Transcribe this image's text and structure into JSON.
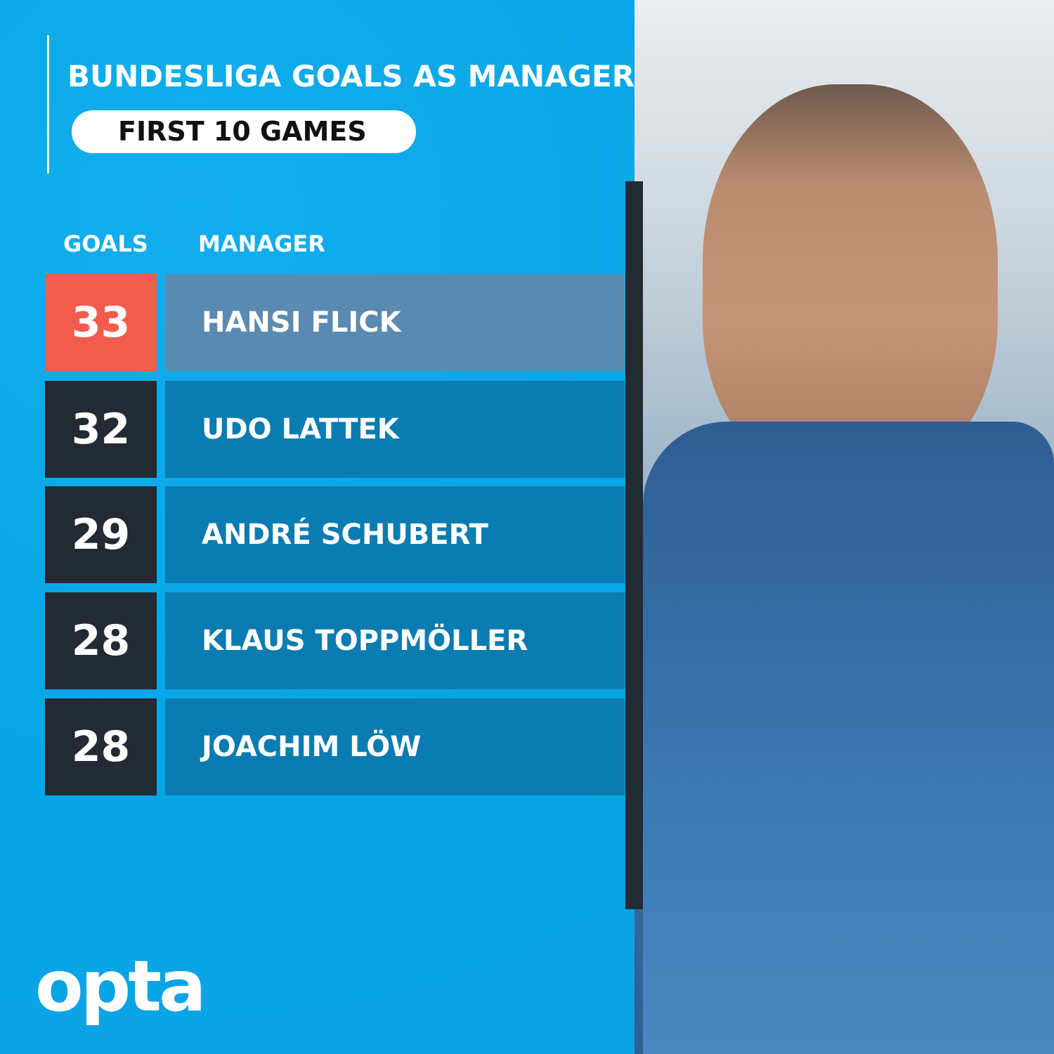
{
  "title": "BUNDESLIGA GOALS AS MANAGER",
  "subtitle": "FIRST 10 GAMES",
  "brand": "opta",
  "colors": {
    "background": "#0aa9e9",
    "highlight_goals": "#f25c4c",
    "highlight_row": "#5b8ab1",
    "row": "#0b7cb1",
    "goals_cell": "#222a33"
  },
  "chart_data": {
    "type": "table",
    "title": "BUNDESLIGA GOALS AS MANAGER",
    "subtitle": "FIRST 10 GAMES",
    "columns": [
      "GOALS",
      "MANAGER"
    ],
    "rows": [
      {
        "goals": "33",
        "manager": "HANSI FLICK",
        "highlighted": true
      },
      {
        "goals": "32",
        "manager": "UDO LATTEK",
        "highlighted": false
      },
      {
        "goals": "29",
        "manager": "ANDRÉ SCHUBERT",
        "highlighted": false
      },
      {
        "goals": "28",
        "manager": "KLAUS TOPPMÖLLER",
        "highlighted": false
      },
      {
        "goals": "28",
        "manager": "JOACHIM LÖW",
        "highlighted": false
      }
    ]
  }
}
